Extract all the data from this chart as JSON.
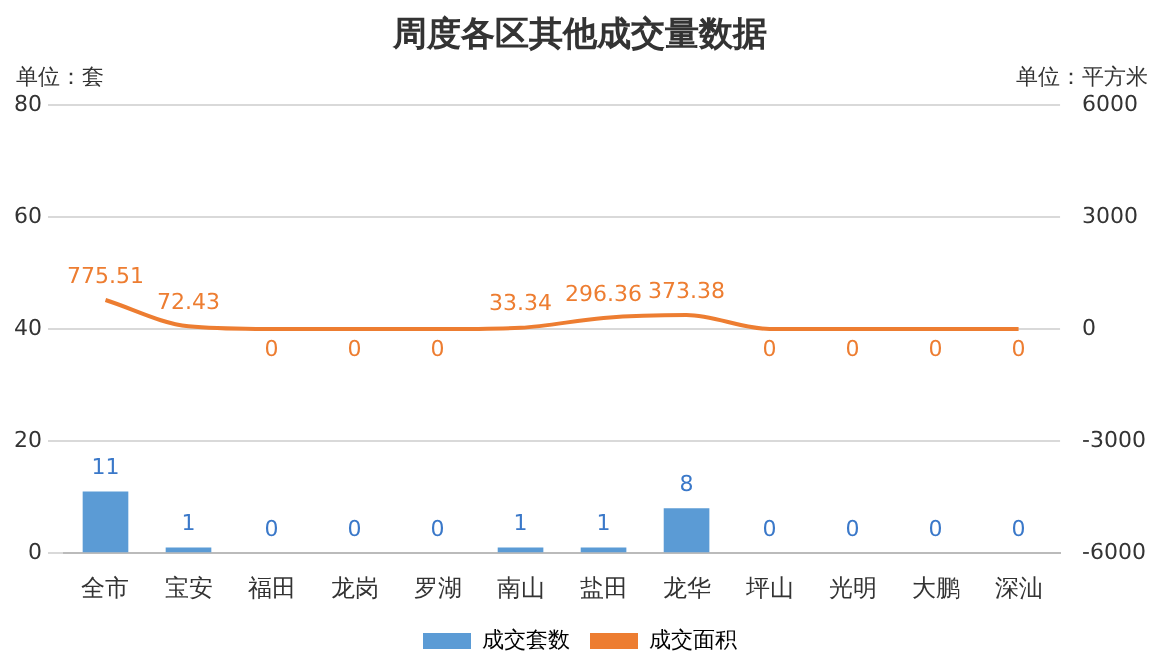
{
  "chart_data": {
    "type": "bar",
    "title": "周度各区其他成交量数据",
    "ylabel": "单位：套",
    "y2label": "单位：平方米",
    "categories": [
      "全市",
      "宝安",
      "福田",
      "龙岗",
      "罗湖",
      "南山",
      "盐田",
      "龙华",
      "坪山",
      "光明",
      "大鹏",
      "深汕"
    ],
    "series": [
      {
        "name": "成交套数",
        "color": "#5b9bd5",
        "values": [
          11,
          1,
          0,
          0,
          0,
          1,
          1,
          8,
          0,
          0,
          0,
          0
        ]
      },
      {
        "name": "成交面积",
        "type": "line",
        "axis": "y2",
        "color": "#ed7d31",
        "values": [
          775.51,
          72.43,
          0,
          0,
          0,
          33.34,
          296.36,
          373.38,
          0,
          0,
          0,
          0
        ]
      }
    ],
    "ylim": [
      0,
      80
    ],
    "yticks": [
      0,
      20,
      40,
      60,
      80
    ],
    "y2lim": [
      -6000,
      6000
    ],
    "y2ticks": [
      -6000,
      -3000,
      0,
      3000,
      6000
    ],
    "grid": "y",
    "legend": "bottom",
    "data_labels": true,
    "marker": "none"
  }
}
